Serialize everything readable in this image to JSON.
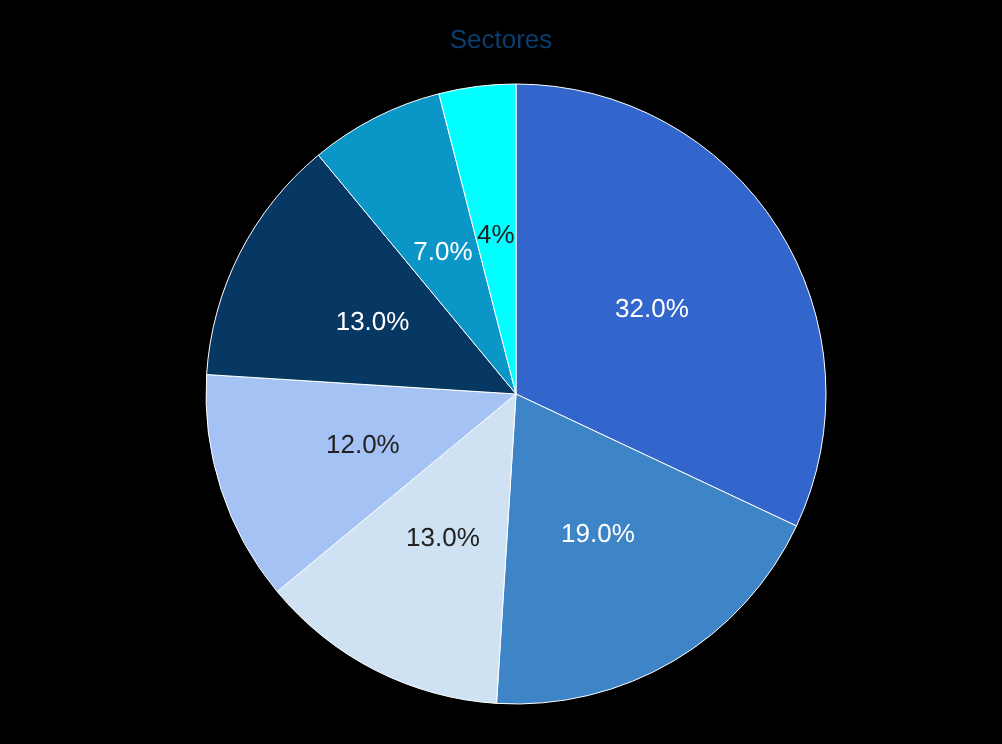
{
  "chart_data": {
    "type": "pie",
    "title": "Sectores",
    "categories": [
      null,
      null,
      null,
      null,
      null,
      null,
      null
    ],
    "values": [
      32,
      19,
      13,
      12,
      13,
      7,
      4
    ],
    "colors": [
      "#3366cc",
      "#3d85c6",
      "#cfe2f3",
      "#a4c2f4",
      "#073763",
      "#0b96c8",
      "#00ffff"
    ],
    "value_labels": [
      "32.0%",
      "19.0%",
      "13.0%",
      "12.0%",
      "13.0%",
      "7.0%",
      "4%"
    ]
  }
}
